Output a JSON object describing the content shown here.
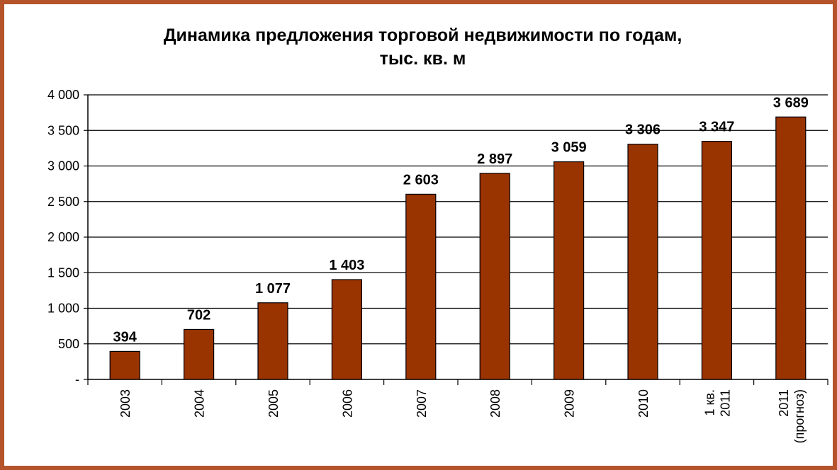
{
  "chart_data": {
    "type": "bar",
    "title_line1": "Динамика предложения торговой недвижимости по годам,",
    "title_line2": "тыс. кв. м",
    "categories": [
      [
        "2003"
      ],
      [
        "2004"
      ],
      [
        "2005"
      ],
      [
        "2006"
      ],
      [
        "2007"
      ],
      [
        "2008"
      ],
      [
        "2009"
      ],
      [
        "2010"
      ],
      [
        "1 кв.",
        "2011"
      ],
      [
        "2011",
        "(прогноз)"
      ]
    ],
    "values": [
      394,
      702,
      1077,
      1403,
      2603,
      2897,
      3059,
      3306,
      3347,
      3689
    ],
    "value_labels": [
      "394",
      "702",
      "1 077",
      "1 403",
      "2 603",
      "2 897",
      "3 059",
      "3 306",
      "3 347",
      "3 689"
    ],
    "ylim": [
      0,
      4000
    ],
    "yticks": [
      0,
      500,
      1000,
      1500,
      2000,
      2500,
      3000,
      3500,
      4000
    ],
    "ytick_labels": [
      "-",
      "500",
      "1 000",
      "1 500",
      "2 000",
      "2 500",
      "3 000",
      "3 500",
      "4 000"
    ],
    "grid": true,
    "bar_color": "#993300",
    "frame_color": "#b5532a"
  }
}
